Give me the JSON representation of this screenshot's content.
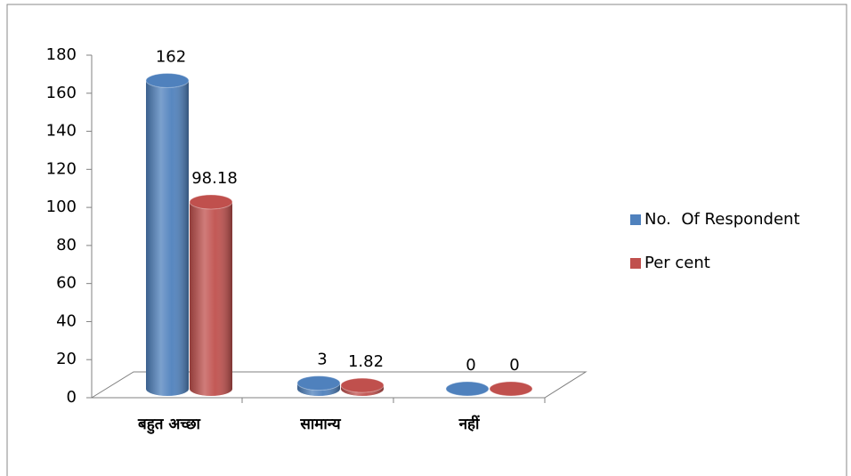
{
  "chart_data": {
    "type": "bar",
    "categories": [
      "बहुत अच्छा",
      "सामान्य",
      "नहीं"
    ],
    "series": [
      {
        "name": "No.  Of Respondent",
        "color": "#4f81bd",
        "values": [
          162,
          3,
          0
        ]
      },
      {
        "name": "Per cent",
        "color": "#c0504d",
        "values": [
          98.18,
          1.82,
          0
        ]
      }
    ],
    "ylim": [
      0,
      180
    ],
    "yticks": [
      0,
      20,
      40,
      60,
      80,
      100,
      120,
      140,
      160,
      180
    ],
    "grid": false,
    "legend": "right"
  }
}
